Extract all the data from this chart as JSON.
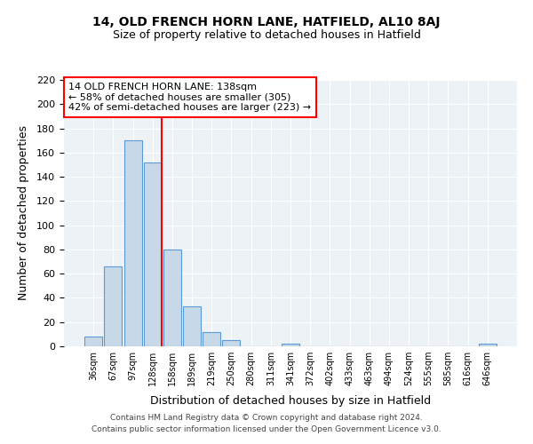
{
  "title": "14, OLD FRENCH HORN LANE, HATFIELD, AL10 8AJ",
  "subtitle": "Size of property relative to detached houses in Hatfield",
  "xlabel": "Distribution of detached houses by size in Hatfield",
  "ylabel": "Number of detached properties",
  "bar_labels": [
    "36sqm",
    "67sqm",
    "97sqm",
    "128sqm",
    "158sqm",
    "189sqm",
    "219sqm",
    "250sqm",
    "280sqm",
    "311sqm",
    "341sqm",
    "372sqm",
    "402sqm",
    "433sqm",
    "463sqm",
    "494sqm",
    "524sqm",
    "555sqm",
    "585sqm",
    "616sqm",
    "646sqm"
  ],
  "bar_values": [
    8,
    66,
    170,
    152,
    80,
    33,
    12,
    5,
    0,
    0,
    2,
    0,
    0,
    0,
    0,
    0,
    0,
    0,
    0,
    0,
    2
  ],
  "bar_color": "#c7d9e8",
  "bar_edge_color": "#5b9bd5",
  "vline_x_index": 3,
  "vline_color": "red",
  "annotation_title": "14 OLD FRENCH HORN LANE: 138sqm",
  "annotation_line1": "← 58% of detached houses are smaller (305)",
  "annotation_line2": "42% of semi-detached houses are larger (223) →",
  "annotation_box_color": "red",
  "ylim": [
    0,
    220
  ],
  "yticks": [
    0,
    20,
    40,
    60,
    80,
    100,
    120,
    140,
    160,
    180,
    200,
    220
  ],
  "background_color": "#edf2f7",
  "grid_color": "#ffffff",
  "footer_line1": "Contains HM Land Registry data © Crown copyright and database right 2024.",
  "footer_line2": "Contains public sector information licensed under the Open Government Licence v3.0."
}
